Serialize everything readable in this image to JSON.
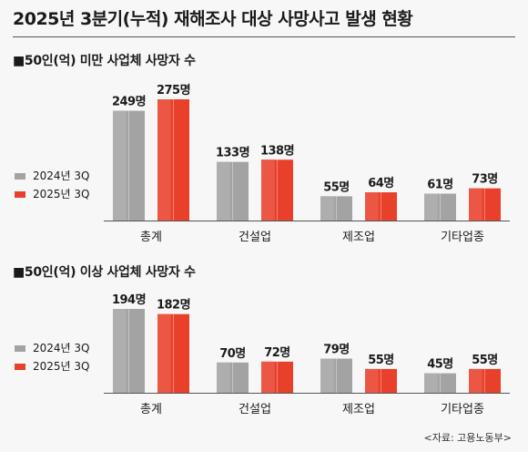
{
  "title": "2025년 3분기(누적) 재해조사 대상 사망사고 발생 현황",
  "source": "<자료: 고용노동부>",
  "colors": {
    "y2024": "#a3a3a3",
    "y2025": "#e8402a"
  },
  "chart_data": [
    {
      "type": "bar",
      "title": "■50인(억) 미만 사업체 사망자 수",
      "categories": [
        "총계",
        "건설업",
        "제조업",
        "기타업종"
      ],
      "series": [
        {
          "name": "2024년 3Q",
          "values": [
            249,
            133,
            55,
            61
          ],
          "labels": [
            "249명",
            "133명",
            "55명",
            "61명"
          ]
        },
        {
          "name": "2025년 3Q",
          "values": [
            275,
            138,
            64,
            73
          ],
          "labels": [
            "275명",
            "138명",
            "64명",
            "73명"
          ]
        }
      ],
      "ylim": [
        0,
        275
      ],
      "legend": "left",
      "grid": false
    },
    {
      "type": "bar",
      "title": "■50인(억) 이상 사업체 사망자 수",
      "categories": [
        "총계",
        "건설업",
        "제조업",
        "기타업종"
      ],
      "series": [
        {
          "name": "2024년 3Q",
          "values": [
            194,
            70,
            79,
            45
          ],
          "labels": [
            "194명",
            "70명",
            "79명",
            "45명"
          ]
        },
        {
          "name": "2025년 3Q",
          "values": [
            182,
            72,
            55,
            55
          ],
          "labels": [
            "182명",
            "72명",
            "55명",
            "55명"
          ]
        }
      ],
      "ylim": [
        0,
        194
      ],
      "legend": "left",
      "grid": false
    }
  ]
}
